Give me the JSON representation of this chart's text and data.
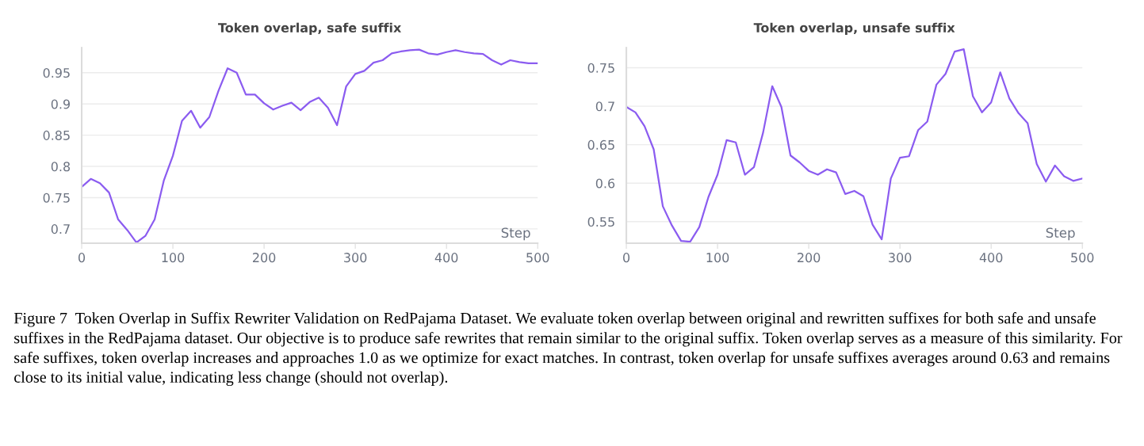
{
  "chart_data": [
    {
      "type": "line",
      "title": "Token overlap, safe suffix",
      "xlabel": "Step",
      "xlim": [
        0,
        500
      ],
      "xticks": [
        0,
        100,
        200,
        300,
        400,
        500
      ],
      "ylim": [
        0.677,
        0.99
      ],
      "yticks": [
        0.7,
        0.75,
        0.8,
        0.85,
        0.9,
        0.95
      ],
      "grid": "y",
      "legend": false,
      "x": [
        0,
        10,
        20,
        30,
        40,
        50,
        60,
        70,
        80,
        90,
        100,
        110,
        120,
        130,
        140,
        150,
        160,
        170,
        180,
        190,
        200,
        210,
        220,
        230,
        240,
        250,
        260,
        270,
        280,
        290,
        300,
        310,
        320,
        330,
        340,
        350,
        360,
        370,
        380,
        390,
        400,
        410,
        420,
        430,
        440,
        450,
        460,
        470,
        480,
        490,
        500
      ],
      "series": [
        {
          "color": "#8b5cf0",
          "values": [
            0.767,
            0.78,
            0.773,
            0.758,
            0.715,
            0.698,
            0.678,
            0.689,
            0.715,
            0.777,
            0.817,
            0.873,
            0.889,
            0.862,
            0.879,
            0.921,
            0.957,
            0.95,
            0.915,
            0.915,
            0.901,
            0.891,
            0.897,
            0.902,
            0.89,
            0.903,
            0.91,
            0.894,
            0.866,
            0.928,
            0.948,
            0.953,
            0.966,
            0.97,
            0.981,
            0.984,
            0.986,
            0.987,
            0.981,
            0.979,
            0.983,
            0.986,
            0.983,
            0.981,
            0.98,
            0.97,
            0.963,
            0.97,
            0.967,
            0.965,
            0.965
          ]
        }
      ]
    },
    {
      "type": "line",
      "title": "Token overlap, unsafe suffix",
      "xlabel": "Step",
      "xlim": [
        0,
        500
      ],
      "xticks": [
        0,
        100,
        200,
        300,
        400,
        500
      ],
      "ylim": [
        0.522,
        0.776
      ],
      "yticks": [
        0.55,
        0.6,
        0.65,
        0.7,
        0.75
      ],
      "grid": "y",
      "legend": false,
      "x": [
        0,
        10,
        20,
        30,
        40,
        50,
        60,
        70,
        80,
        90,
        100,
        110,
        120,
        130,
        140,
        150,
        160,
        170,
        180,
        190,
        200,
        210,
        220,
        230,
        240,
        250,
        260,
        270,
        280,
        290,
        300,
        310,
        320,
        330,
        340,
        350,
        360,
        370,
        380,
        390,
        400,
        410,
        420,
        430,
        440,
        450,
        460,
        470,
        480,
        490,
        500
      ],
      "series": [
        {
          "color": "#8b5cf0",
          "values": [
            0.699,
            0.692,
            0.674,
            0.644,
            0.57,
            0.545,
            0.525,
            0.524,
            0.543,
            0.582,
            0.611,
            0.656,
            0.653,
            0.611,
            0.621,
            0.666,
            0.726,
            0.699,
            0.636,
            0.627,
            0.616,
            0.611,
            0.618,
            0.614,
            0.586,
            0.59,
            0.583,
            0.546,
            0.527,
            0.606,
            0.633,
            0.635,
            0.669,
            0.68,
            0.728,
            0.742,
            0.771,
            0.774,
            0.713,
            0.692,
            0.705,
            0.744,
            0.71,
            0.691,
            0.678,
            0.625,
            0.602,
            0.623,
            0.609,
            0.603,
            0.606
          ]
        }
      ],
      "annotations": [
        "Figure 7  Token Overlap in Suffix Rewriter Validation on RedPajama Dataset. We evaluate token overlap between original and rewritten suffixes for both safe and unsafe suffixes in the RedPajama dataset. Our objective is to produce safe rewrites that remain similar to the original suffix. Token overlap serves as a measure of this similarity. For safe suffixes, token overlap increases and approaches 1.0 as we optimize for exact matches. In contrast, token overlap for unsafe suffixes averages around 0.63 and remains close to its initial value, indicating less change (should not overlap)."
      ]
    }
  ]
}
